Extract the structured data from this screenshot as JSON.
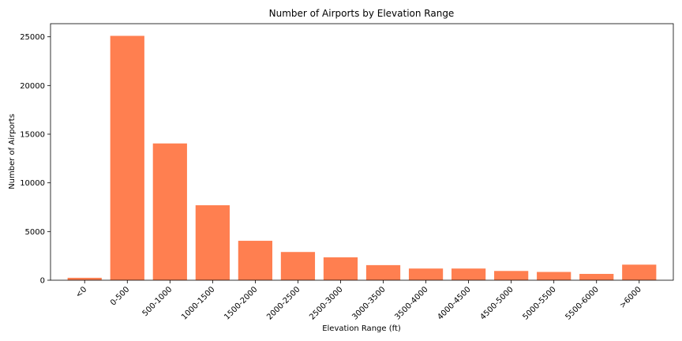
{
  "chart_data": {
    "type": "bar",
    "title": "Number of Airports by Elevation Range",
    "xlabel": "Elevation Range (ft)",
    "ylabel": "Number of Airports",
    "categories": [
      "<0",
      "0-500",
      "500-1000",
      "1000-1500",
      "1500-2000",
      "2000-2500",
      "2500-3000",
      "3000-3500",
      "3500-4000",
      "4000-4500",
      "4500-5000",
      "5000-5500",
      "5500-6000",
      ">6000"
    ],
    "values": [
      250,
      25100,
      14050,
      7700,
      4050,
      2900,
      2350,
      1550,
      1200,
      1200,
      950,
      850,
      650,
      1600
    ],
    "ylim": [
      0,
      26350
    ],
    "yticks": [
      0,
      5000,
      10000,
      15000,
      20000,
      25000
    ],
    "bar_color": "#ff7f50",
    "grid": false,
    "legend": "none"
  }
}
